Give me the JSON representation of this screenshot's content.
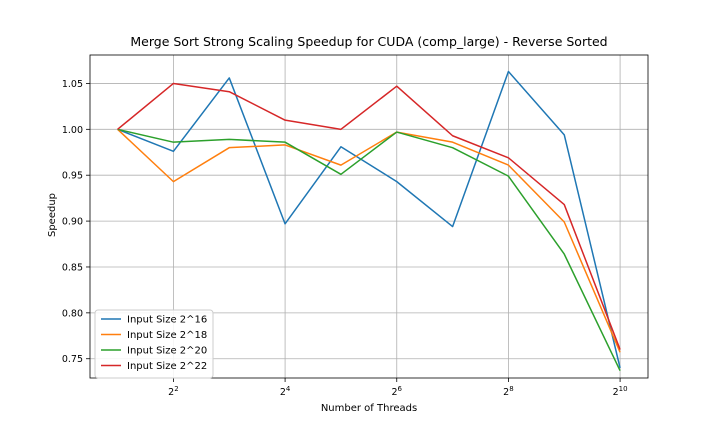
{
  "chart_data": {
    "type": "line",
    "title": "Merge Sort Strong Scaling Speedup for CUDA (comp_large) - Reverse Sorted",
    "xlabel": "Number of Threads",
    "ylabel": "Speedup",
    "x_scale": "log2",
    "x": [
      2,
      4,
      8,
      16,
      32,
      64,
      128,
      256,
      512,
      1024
    ],
    "x_ticks": [
      {
        "value": 4,
        "base": "2",
        "exp": "2"
      },
      {
        "value": 16,
        "base": "2",
        "exp": "4"
      },
      {
        "value": 64,
        "base": "2",
        "exp": "6"
      },
      {
        "value": 256,
        "base": "2",
        "exp": "8"
      },
      {
        "value": 1024,
        "base": "2",
        "exp": "10"
      }
    ],
    "y_ticks": [
      "0.75",
      "0.80",
      "0.85",
      "0.90",
      "0.95",
      "1.00",
      "1.05"
    ],
    "xlim": [
      1.42,
      1448
    ],
    "ylim": [
      0.729,
      1.081
    ],
    "grid": true,
    "legend_position": "lower-left",
    "series": [
      {
        "name": "Input Size 2^16",
        "color": "#1f77b4",
        "values": [
          1.0,
          0.976,
          1.056,
          0.897,
          0.981,
          0.943,
          0.894,
          1.063,
          0.994,
          0.74
        ]
      },
      {
        "name": "Input Size 2^18",
        "color": "#ff7f0e",
        "values": [
          1.0,
          0.943,
          0.98,
          0.983,
          0.961,
          0.997,
          0.986,
          0.961,
          0.899,
          0.757
        ]
      },
      {
        "name": "Input Size 2^20",
        "color": "#2ca02c",
        "values": [
          1.0,
          0.986,
          0.989,
          0.986,
          0.951,
          0.997,
          0.98,
          0.949,
          0.864,
          0.737
        ]
      },
      {
        "name": "Input Size 2^22",
        "color": "#d62728",
        "values": [
          1.0,
          1.05,
          1.041,
          1.01,
          1.0,
          1.047,
          0.993,
          0.969,
          0.918,
          0.76
        ]
      }
    ]
  }
}
